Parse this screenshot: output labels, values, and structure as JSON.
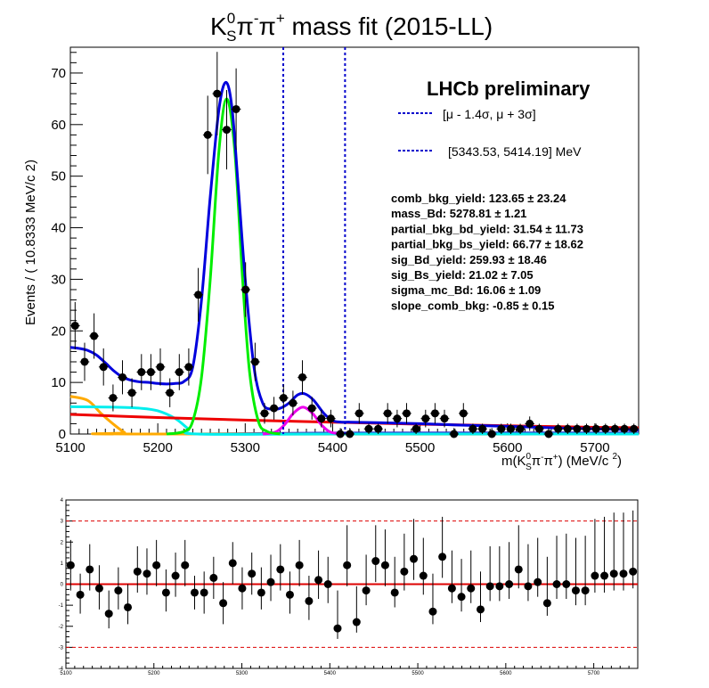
{
  "chart_data": [
    {
      "type": "scatter",
      "title": {
        "main": "K",
        "sup0": "0",
        "sub": "S",
        "pi1": "π",
        "sup1": "-",
        "pi2": "π",
        "sup2": "+",
        "rest": " mass fit (2015-LL)"
      },
      "ylabel": "Events / ( 10.8333 MeV/c  2)",
      "xlabel": "m(K0Sπ-π+) (MeV/c 2)",
      "xlabel_parts": {
        "a": "m(K",
        "b": "0",
        "c": "S",
        "d": "π",
        "e": "-",
        "f": "π",
        "g": "+",
        "h": ") (MeV/c ",
        "i": "2",
        "j": ")"
      },
      "xlim": [
        5100,
        5750
      ],
      "ylim": [
        0,
        75
      ],
      "x_ticks": [
        5100,
        5200,
        5300,
        5400,
        5500,
        5600,
        5700
      ],
      "y_ticks": [
        0,
        10,
        20,
        30,
        40,
        50,
        60,
        70
      ],
      "legend_text": {
        "experiment": "LHCb preliminary",
        "window_sigma": "[μ - 1.4σ,   μ + 3σ]",
        "window_mev": "[5343.53, 5414.19] MeV"
      },
      "window_lines": [
        5343.53,
        5414.19
      ],
      "fit_parameters": [
        {
          "name": "comb_bkg_yield:",
          "value": "123.65",
          "error": "± 23.24"
        },
        {
          "name": "mass_Bd:",
          "value": "5278.81",
          "error": "± 1.21"
        },
        {
          "name": "partial_bkg_bd_yield:",
          "value": "31.54",
          "error": "± 11.73"
        },
        {
          "name": "partial_bkg_bs_yield:",
          "value": "66.77",
          "error": "± 18.62"
        },
        {
          "name": "sig_Bd_yield:",
          "value": "259.93",
          "error": "± 18.46"
        },
        {
          "name": "sig_Bs_yield:",
          "value": "21.02",
          "error": "± 7.05"
        },
        {
          "name": "sigma_mc_Bd:",
          "value": "16.06",
          "error": "± 1.09"
        },
        {
          "name": "slope_comb_bkg:",
          "value": "-0.85",
          "error": "± 0.15"
        }
      ],
      "colors": {
        "total": "#0000dd",
        "signal_bd": "#00ee00",
        "signal_bs": "#ee00ee",
        "comb": "#ee0000",
        "partial_bd": "#00eeee",
        "partial_bs": "#ffaa00",
        "window": "#0000cc",
        "points": "#000000"
      },
      "data_points": [
        {
          "x": 5105.4,
          "y": 21,
          "e": 4.6
        },
        {
          "x": 5116.3,
          "y": 14,
          "e": 3.7
        },
        {
          "x": 5127.1,
          "y": 19,
          "e": 4.4
        },
        {
          "x": 5137.9,
          "y": 13,
          "e": 3.6
        },
        {
          "x": 5148.8,
          "y": 7,
          "e": 2.6
        },
        {
          "x": 5159.6,
          "y": 11,
          "e": 3.3
        },
        {
          "x": 5170.4,
          "y": 8,
          "e": 2.8
        },
        {
          "x": 5181.3,
          "y": 12,
          "e": 3.5
        },
        {
          "x": 5192.1,
          "y": 12,
          "e": 3.5
        },
        {
          "x": 5202.9,
          "y": 13,
          "e": 3.6
        },
        {
          "x": 5213.8,
          "y": 8,
          "e": 2.8
        },
        {
          "x": 5224.6,
          "y": 12,
          "e": 3.5
        },
        {
          "x": 5235.4,
          "y": 13,
          "e": 3.6
        },
        {
          "x": 5246.3,
          "y": 27,
          "e": 5.2
        },
        {
          "x": 5257.1,
          "y": 58,
          "e": 7.6
        },
        {
          "x": 5267.9,
          "y": 66,
          "e": 8.1
        },
        {
          "x": 5278.8,
          "y": 59,
          "e": 7.7
        },
        {
          "x": 5289.6,
          "y": 63,
          "e": 7.9
        },
        {
          "x": 5300.4,
          "y": 28,
          "e": 5.3
        },
        {
          "x": 5311.3,
          "y": 14,
          "e": 3.7
        },
        {
          "x": 5322.1,
          "y": 4,
          "e": 2.0
        },
        {
          "x": 5332.9,
          "y": 5,
          "e": 2.2
        },
        {
          "x": 5343.8,
          "y": 7,
          "e": 2.6
        },
        {
          "x": 5354.6,
          "y": 6,
          "e": 2.4
        },
        {
          "x": 5365.4,
          "y": 11,
          "e": 3.3
        },
        {
          "x": 5376.3,
          "y": 5,
          "e": 2.2
        },
        {
          "x": 5387.1,
          "y": 3,
          "e": 1.7
        },
        {
          "x": 5397.9,
          "y": 3,
          "e": 1.7
        },
        {
          "x": 5408.8,
          "y": 0,
          "e": 1.15
        },
        {
          "x": 5419.6,
          "y": 0,
          "e": 1.15
        },
        {
          "x": 5430.4,
          "y": 4,
          "e": 2.0
        },
        {
          "x": 5441.3,
          "y": 1,
          "e": 1.0
        },
        {
          "x": 5452.1,
          "y": 1,
          "e": 1.0
        },
        {
          "x": 5462.9,
          "y": 4,
          "e": 2.0
        },
        {
          "x": 5473.8,
          "y": 3,
          "e": 1.7
        },
        {
          "x": 5484.6,
          "y": 4,
          "e": 2.0
        },
        {
          "x": 5495.4,
          "y": 1,
          "e": 1.0
        },
        {
          "x": 5506.3,
          "y": 3,
          "e": 1.7
        },
        {
          "x": 5517.1,
          "y": 4,
          "e": 2.0
        },
        {
          "x": 5527.9,
          "y": 3,
          "e": 1.7
        },
        {
          "x": 5538.8,
          "y": 0,
          "e": 1.15
        },
        {
          "x": 5549.6,
          "y": 4,
          "e": 2.0
        },
        {
          "x": 5560.4,
          "y": 1,
          "e": 1.0
        },
        {
          "x": 5571.3,
          "y": 1,
          "e": 1.0
        },
        {
          "x": 5582.1,
          "y": 0,
          "e": 1.15
        },
        {
          "x": 5592.9,
          "y": 1,
          "e": 1.0
        },
        {
          "x": 5603.8,
          "y": 1,
          "e": 1.0
        },
        {
          "x": 5614.6,
          "y": 1,
          "e": 1.0
        },
        {
          "x": 5625.4,
          "y": 2,
          "e": 1.4
        },
        {
          "x": 5636.3,
          "y": 1,
          "e": 1.0
        },
        {
          "x": 5647.1,
          "y": 0,
          "e": 1.15
        },
        {
          "x": 5657.9,
          "y": 1,
          "e": 1.0
        },
        {
          "x": 5668.8,
          "y": 1,
          "e": 1.0
        },
        {
          "x": 5679.6,
          "y": 1,
          "e": 1.0
        },
        {
          "x": 5690.4,
          "y": 1,
          "e": 1.0
        },
        {
          "x": 5701.3,
          "y": 1,
          "e": 1.0
        },
        {
          "x": 5712.1,
          "y": 1,
          "e": 1.0
        },
        {
          "x": 5722.9,
          "y": 1,
          "e": 1.0
        },
        {
          "x": 5733.8,
          "y": 1,
          "e": 1.0
        },
        {
          "x": 5744.6,
          "y": 1,
          "e": 1.0
        }
      ],
      "curves": {
        "total": [
          [
            5100,
            16.8
          ],
          [
            5110,
            16.6
          ],
          [
            5120,
            16.2
          ],
          [
            5130,
            15.3
          ],
          [
            5140,
            13.8
          ],
          [
            5150,
            12.2
          ],
          [
            5160,
            11
          ],
          [
            5170,
            10.4
          ],
          [
            5180,
            10.1
          ],
          [
            5190,
            10
          ],
          [
            5200,
            9.8
          ],
          [
            5210,
            9.7
          ],
          [
            5220,
            9.8
          ],
          [
            5230,
            10.2
          ],
          [
            5240,
            13
          ],
          [
            5250,
            26
          ],
          [
            5260,
            46
          ],
          [
            5270,
            63
          ],
          [
            5278,
            68.2
          ],
          [
            5285,
            63
          ],
          [
            5292,
            48
          ],
          [
            5300,
            30
          ],
          [
            5310,
            13
          ],
          [
            5320,
            6
          ],
          [
            5330,
            4.8
          ],
          [
            5340,
            5
          ],
          [
            5350,
            6
          ],
          [
            5360,
            7.6
          ],
          [
            5368,
            7.8
          ],
          [
            5378,
            6.6
          ],
          [
            5390,
            4
          ],
          [
            5400,
            2.6
          ],
          [
            5410,
            2.3
          ],
          [
            5420,
            2.3
          ],
          [
            5450,
            2.2
          ],
          [
            5500,
            2
          ],
          [
            5550,
            1.7
          ],
          [
            5600,
            1.5
          ],
          [
            5650,
            1.2
          ],
          [
            5700,
            1
          ],
          [
            5750,
            0.8
          ]
        ],
        "signal_bd": [
          [
            5210,
            0
          ],
          [
            5230,
            0.5
          ],
          [
            5240,
            2.5
          ],
          [
            5250,
            11
          ],
          [
            5260,
            30
          ],
          [
            5270,
            55
          ],
          [
            5278.8,
            65
          ],
          [
            5288,
            55
          ],
          [
            5297,
            30
          ],
          [
            5305,
            12
          ],
          [
            5315,
            2.5
          ],
          [
            5325,
            0.5
          ],
          [
            5340,
            0
          ]
        ],
        "signal_bs": [
          [
            5320,
            0
          ],
          [
            5335,
            0.4
          ],
          [
            5345,
            1.8
          ],
          [
            5355,
            4
          ],
          [
            5366,
            5.2
          ],
          [
            5377,
            4
          ],
          [
            5387,
            1.8
          ],
          [
            5397,
            0.4
          ],
          [
            5410,
            0
          ]
        ],
        "comb": [
          [
            5100,
            3.8
          ],
          [
            5200,
            3.2
          ],
          [
            5300,
            2.7
          ],
          [
            5400,
            2.3
          ],
          [
            5500,
            1.9
          ],
          [
            5600,
            1.6
          ],
          [
            5700,
            1.3
          ],
          [
            5750,
            1.2
          ]
        ],
        "partial_bd": [
          [
            5100,
            5.3
          ],
          [
            5150,
            5.2
          ],
          [
            5180,
            5
          ],
          [
            5200,
            4.5
          ],
          [
            5220,
            3
          ],
          [
            5235,
            1
          ],
          [
            5245,
            0
          ],
          [
            5400,
            0
          ],
          [
            5750,
            0
          ]
        ],
        "partial_bs": [
          [
            5100,
            7.3
          ],
          [
            5120,
            6.5
          ],
          [
            5135,
            4
          ],
          [
            5150,
            1.8
          ],
          [
            5162,
            0.3
          ],
          [
            5170,
            0
          ],
          [
            5750,
            0
          ]
        ],
        "flat_blue": [
          [
            5240,
            0
          ],
          [
            5400,
            0.2
          ],
          [
            5750,
            0.2
          ]
        ]
      }
    },
    {
      "type": "scatter",
      "xlim": [
        5100,
        5750
      ],
      "ylim": [
        -4,
        4
      ],
      "x_ticks": [
        5100,
        5200,
        5300,
        5400,
        5500,
        5600,
        5700
      ],
      "y_ticks": [
        -4,
        -3,
        -2,
        -1,
        0,
        1,
        2,
        3,
        4
      ],
      "reference_lines": [
        0,
        3,
        -3
      ],
      "pulls": [
        {
          "x": 5105.4,
          "y": 0.9,
          "lo": 1.2,
          "hi": 1.2
        },
        {
          "x": 5116.3,
          "y": -0.5,
          "lo": 0.9,
          "hi": 1.0
        },
        {
          "x": 5127.1,
          "y": 0.7,
          "lo": 1.0,
          "hi": 1.2
        },
        {
          "x": 5137.9,
          "y": -0.2,
          "lo": 1.0,
          "hi": 1.1
        },
        {
          "x": 5148.8,
          "y": -1.4,
          "lo": 0.7,
          "hi": 1.1
        },
        {
          "x": 5159.6,
          "y": -0.3,
          "lo": 0.9,
          "hi": 1.1
        },
        {
          "x": 5170.4,
          "y": -1.1,
          "lo": 0.8,
          "hi": 1.1
        },
        {
          "x": 5181.3,
          "y": 0.6,
          "lo": 1.0,
          "hi": 1.2
        },
        {
          "x": 5192.1,
          "y": 0.5,
          "lo": 1.0,
          "hi": 1.2
        },
        {
          "x": 5202.9,
          "y": 0.9,
          "lo": 1.0,
          "hi": 1.2
        },
        {
          "x": 5213.8,
          "y": -0.4,
          "lo": 0.9,
          "hi": 1.1
        },
        {
          "x": 5224.6,
          "y": 0.4,
          "lo": 1.0,
          "hi": 1.1
        },
        {
          "x": 5235.4,
          "y": 0.9,
          "lo": 1.0,
          "hi": 1.2
        },
        {
          "x": 5246.3,
          "y": -0.4,
          "lo": 0.8,
          "hi": 0.8
        },
        {
          "x": 5257.1,
          "y": -0.4,
          "lo": 1.0,
          "hi": 1.0
        },
        {
          "x": 5267.9,
          "y": 0.3,
          "lo": 1.0,
          "hi": 1.0
        },
        {
          "x": 5278.8,
          "y": -0.9,
          "lo": 1.0,
          "hi": 1.0
        },
        {
          "x": 5289.6,
          "y": 1.0,
          "lo": 1.0,
          "hi": 1.0
        },
        {
          "x": 5300.4,
          "y": -0.2,
          "lo": 1.0,
          "hi": 1.0
        },
        {
          "x": 5311.3,
          "y": 0.5,
          "lo": 1.0,
          "hi": 1.0
        },
        {
          "x": 5322.1,
          "y": -0.4,
          "lo": 0.8,
          "hi": 1.2
        },
        {
          "x": 5332.9,
          "y": 0.1,
          "lo": 0.9,
          "hi": 1.3
        },
        {
          "x": 5343.8,
          "y": 0.7,
          "lo": 1.0,
          "hi": 1.2
        },
        {
          "x": 5354.6,
          "y": -0.5,
          "lo": 0.9,
          "hi": 1.1
        },
        {
          "x": 5365.4,
          "y": 0.9,
          "lo": 1.0,
          "hi": 1.2
        },
        {
          "x": 5376.3,
          "y": -0.8,
          "lo": 0.9,
          "hi": 1.2
        },
        {
          "x": 5387.1,
          "y": 0.2,
          "lo": 0.9,
          "hi": 1.4
        },
        {
          "x": 5397.9,
          "y": 0.0,
          "lo": 0.9,
          "hi": 1.3
        },
        {
          "x": 5408.8,
          "y": -2.1,
          "lo": 0.5,
          "hi": 1.8
        },
        {
          "x": 5419.6,
          "y": 0.9,
          "lo": 1.0,
          "hi": 1.9
        },
        {
          "x": 5430.4,
          "y": -1.8,
          "lo": 0.5,
          "hi": 1.7
        },
        {
          "x": 5441.3,
          "y": -0.3,
          "lo": 0.7,
          "hi": 1.7
        },
        {
          "x": 5452.1,
          "y": 1.1,
          "lo": 1.0,
          "hi": 1.7
        },
        {
          "x": 5462.9,
          "y": 0.9,
          "lo": 1.0,
          "hi": 1.7
        },
        {
          "x": 5473.8,
          "y": -0.4,
          "lo": 0.7,
          "hi": 1.7
        },
        {
          "x": 5484.6,
          "y": 0.6,
          "lo": 0.9,
          "hi": 1.8
        },
        {
          "x": 5495.4,
          "y": 1.2,
          "lo": 1.0,
          "hi": 1.9
        },
        {
          "x": 5506.3,
          "y": 0.4,
          "lo": 0.9,
          "hi": 1.8
        },
        {
          "x": 5517.1,
          "y": -1.3,
          "lo": 0.6,
          "hi": 1.8
        },
        {
          "x": 5527.9,
          "y": 1.3,
          "lo": 1.0,
          "hi": 1.9
        },
        {
          "x": 5538.8,
          "y": -0.2,
          "lo": 0.7,
          "hi": 1.8
        },
        {
          "x": 5549.6,
          "y": -0.6,
          "lo": 0.7,
          "hi": 1.8
        },
        {
          "x": 5560.4,
          "y": -0.2,
          "lo": 0.7,
          "hi": 1.8
        },
        {
          "x": 5571.3,
          "y": -1.2,
          "lo": 0.6,
          "hi": 1.8
        },
        {
          "x": 5582.1,
          "y": -0.1,
          "lo": 0.7,
          "hi": 1.9
        },
        {
          "x": 5592.9,
          "y": -0.1,
          "lo": 0.7,
          "hi": 1.9
        },
        {
          "x": 5603.8,
          "y": 0.0,
          "lo": 0.7,
          "hi": 2.0
        },
        {
          "x": 5614.6,
          "y": 0.7,
          "lo": 0.9,
          "hi": 2.1
        },
        {
          "x": 5625.4,
          "y": -0.1,
          "lo": 0.7,
          "hi": 2.0
        },
        {
          "x": 5636.3,
          "y": 0.1,
          "lo": 0.7,
          "hi": 2.1
        },
        {
          "x": 5647.1,
          "y": -0.9,
          "lo": 0.6,
          "hi": 2.2
        },
        {
          "x": 5657.9,
          "y": 0.0,
          "lo": 0.7,
          "hi": 2.3
        },
        {
          "x": 5668.8,
          "y": 0.0,
          "lo": 0.7,
          "hi": 2.4
        },
        {
          "x": 5679.6,
          "y": -0.3,
          "lo": 0.7,
          "hi": 2.5
        },
        {
          "x": 5690.4,
          "y": -0.3,
          "lo": 0.7,
          "hi": 2.6
        },
        {
          "x": 5701.3,
          "y": 0.4,
          "lo": 0.8,
          "hi": 2.7
        },
        {
          "x": 5712.1,
          "y": 0.4,
          "lo": 0.8,
          "hi": 2.8
        },
        {
          "x": 5722.9,
          "y": 0.5,
          "lo": 0.8,
          "hi": 2.9
        },
        {
          "x": 5733.8,
          "y": 0.5,
          "lo": 0.8,
          "hi": 2.9
        },
        {
          "x": 5744.6,
          "y": 0.6,
          "lo": 0.8,
          "hi": 2.9
        }
      ]
    }
  ]
}
